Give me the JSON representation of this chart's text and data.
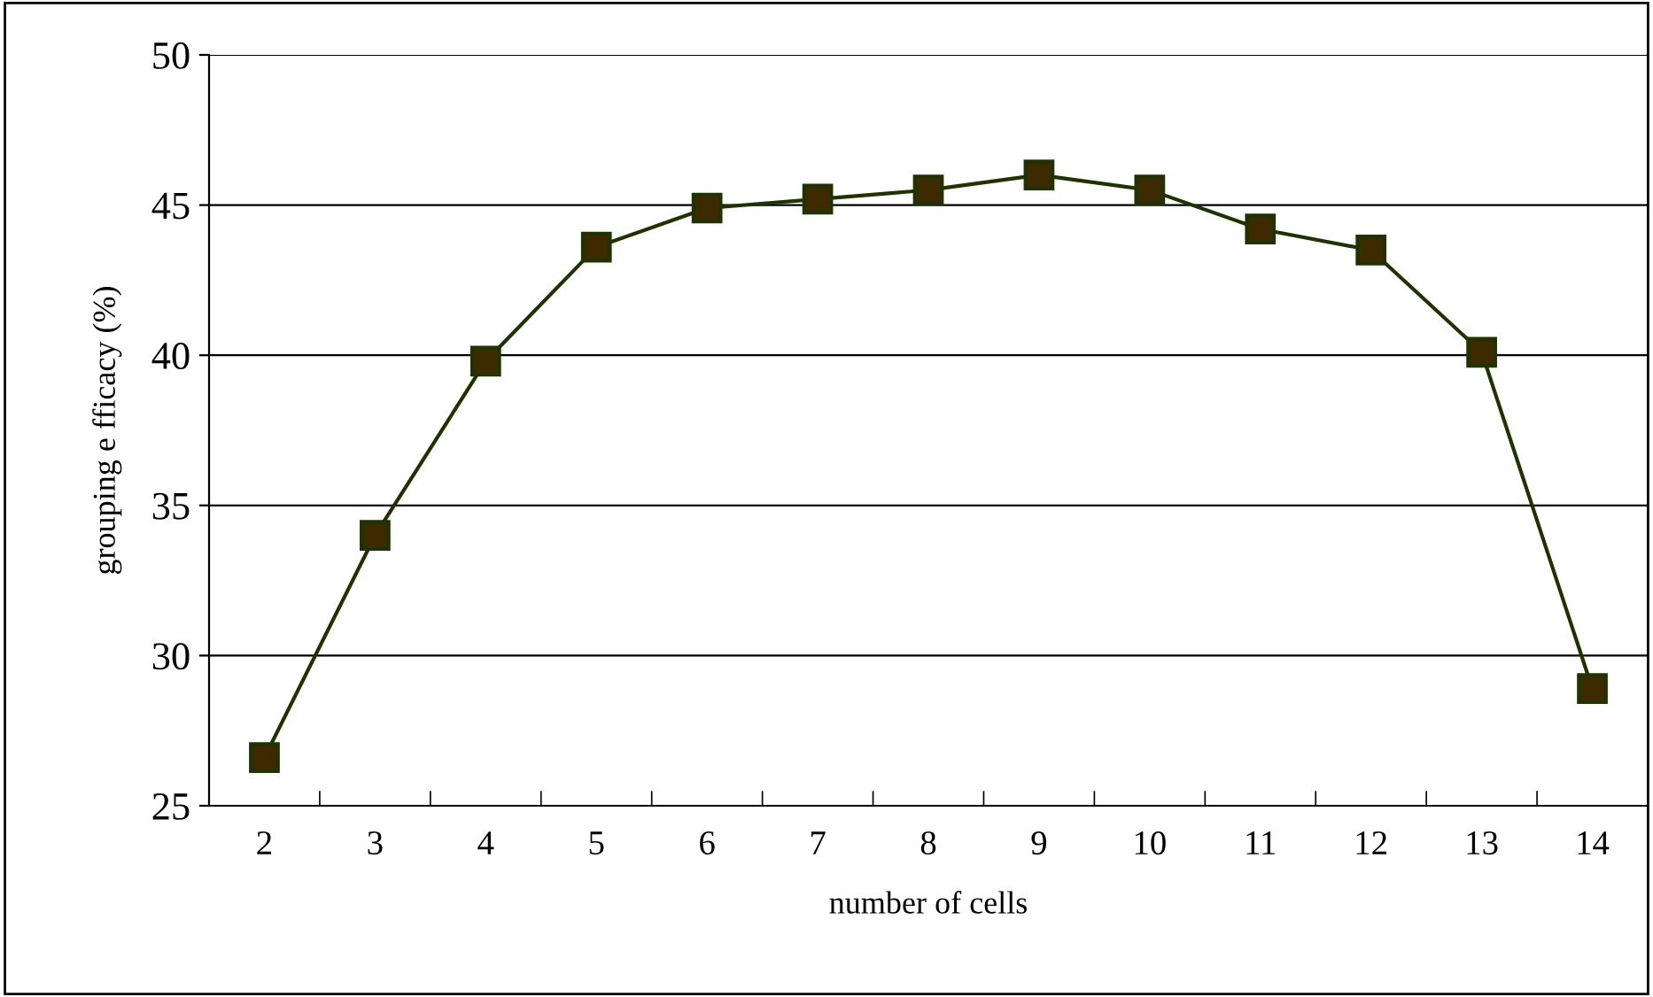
{
  "chart_data": {
    "type": "line",
    "xlabel": "number of cells",
    "ylabel": "grouping e fficacy (%)",
    "categories": [
      "2",
      "3",
      "4",
      "5",
      "6",
      "7",
      "8",
      "9",
      "10",
      "11",
      "12",
      "13",
      "14"
    ],
    "series": [
      {
        "color": "#1f3300",
        "values": [
          26.6,
          34.0,
          39.8,
          43.6,
          44.9,
          45.2,
          45.5,
          46.0,
          45.5,
          44.2,
          43.5,
          40.1,
          28.9
        ]
      }
    ],
    "ylim": [
      25,
      50
    ],
    "yticks": [
      25,
      30,
      35,
      40,
      45,
      50
    ],
    "grid": "y",
    "marker": "square",
    "line_style": "solid"
  }
}
